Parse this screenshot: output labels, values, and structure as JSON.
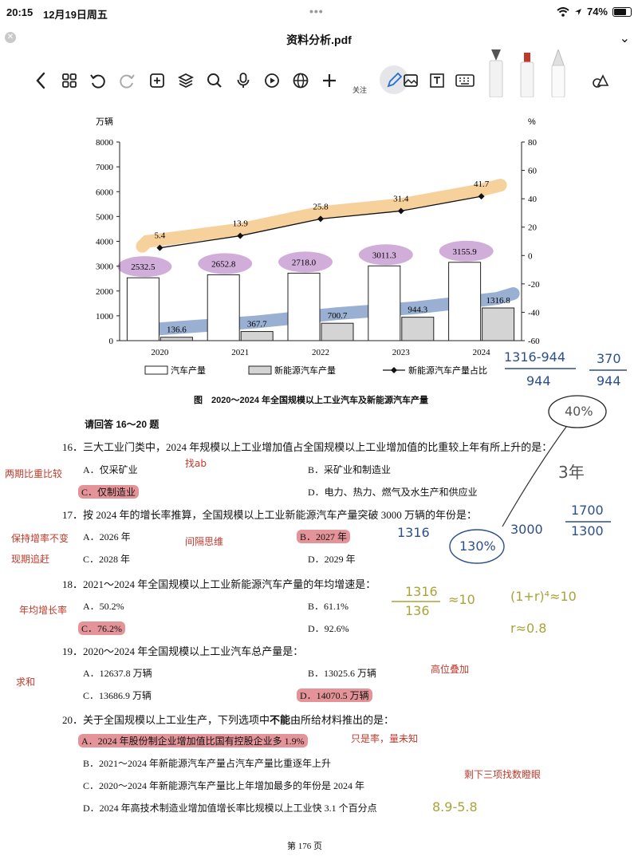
{
  "status_bar": {
    "time": "20:15",
    "date": "12月19日周五",
    "dots": "•••",
    "battery_percent": 74,
    "battery_label": "74%"
  },
  "header": {
    "close_glyph": "✕",
    "title": "资料分析.pdf",
    "expand_glyph": "⌄"
  },
  "toolbar": {
    "icons": [
      "back-icon",
      "grid-icon",
      "undo-icon",
      "redo-icon",
      "add-page-icon",
      "layers-icon",
      "search-icon",
      "microphone-icon",
      "record-icon",
      "globe-icon",
      "add-icon",
      "pen-icon",
      "image-icon",
      "text-box-icon",
      "keyboard-icon",
      "shapes-icon"
    ],
    "follow_label": "关注",
    "pen_colors": [
      "#f2f2f2",
      "#c0392b",
      "#e8e8e8"
    ],
    "accent_color": "#1e6fd9"
  },
  "chart_data": {
    "type": "bar",
    "categories": [
      "2020",
      "2021",
      "2022",
      "2023",
      "2024"
    ],
    "series": [
      {
        "name": "汽车产量",
        "kind": "bar",
        "axis": "left",
        "values": [
          2532.5,
          2652.8,
          2718.0,
          3011.3,
          3155.9
        ],
        "labels": [
          "2532.5",
          "2652.8",
          "2718.0",
          "3011.3",
          "3155.9"
        ]
      },
      {
        "name": "新能源汽车产量",
        "kind": "bar",
        "axis": "left",
        "values": [
          136.6,
          367.7,
          700.7,
          944.3,
          1316.8
        ],
        "labels": [
          "136.6",
          "367.7",
          "700.7",
          "944.3",
          "1316.8"
        ]
      },
      {
        "name": "新能源汽车产量占比",
        "kind": "line",
        "axis": "right",
        "values": [
          5.4,
          13.9,
          25.8,
          31.4,
          41.7
        ],
        "labels": [
          "5.4",
          "13.9",
          "25.8",
          "31.4",
          "41.7"
        ]
      }
    ],
    "left_axis": {
      "unit": "万辆",
      "ylim": [
        0,
        8000
      ],
      "ticks": [
        "0",
        "1000",
        "2000",
        "3000",
        "4000",
        "5000",
        "6000",
        "7000",
        "8000"
      ]
    },
    "right_axis": {
      "unit": "%",
      "ylim": [
        -60,
        80
      ],
      "ticks": [
        "-60",
        "-40",
        "-20",
        "0",
        "20",
        "40",
        "60",
        "80"
      ]
    },
    "legend_position": "bottom",
    "colors": {
      "car": "#ffffff",
      "nev": "#d4d4d4",
      "line": "#111111",
      "highlight_orange": "#f6c98a",
      "highlight_blue": "#7f9cc8",
      "highlight_purple": "#c69ad0"
    }
  },
  "figure_caption": "图　2020～2024 年全国规模以上工业汽车及新能源汽车产量",
  "section_heading": "请回答 16～20 题",
  "questions": [
    {
      "stem": "16．三大工业门类中，2024 年规模以上工业增加值占全国规模以上工业增加值的比重较上年有所上升的是：",
      "options": [
        "A．仅采矿业",
        "B．采矿业和制造业",
        "C．仅制造业",
        "D．电力、热力、燃气及水生产和供应业"
      ]
    },
    {
      "stem": "17．按 2024 年的增长率推算，全国规模以上工业新能源汽车产量突破 3000 万辆的年份是：",
      "options": [
        "A．2026 年",
        "B．2027 年",
        "C．2028 年",
        "D．2029 年"
      ]
    },
    {
      "stem": "18．2021～2024 年全国规模以上工业新能源汽车产量的年均增速是：",
      "options": [
        "A．50.2%",
        "B．61.1%",
        "C．76.2%",
        "D．92.6%"
      ]
    },
    {
      "stem": "19．2020～2024 年全国规模以上工业汽车总产量是：",
      "options": [
        "A．12637.8 万辆",
        "B．13025.6 万辆",
        "C．13686.9 万辆",
        "D．14070.5 万辆"
      ]
    },
    {
      "stem_pre": "20．关于全国规模以上工业生产，下列选项中",
      "stem_bold": "不能",
      "stem_post": "由所给材料推出的是：",
      "options": [
        "A．2024 年股份制企业增加值比国有控股企业多 1.9%",
        "B．2021～2024 年新能源汽车产量占汽车产量比重逐年上升",
        "C．2020～2024 年新能源汽车产量比上年增加最多的年份是 2024 年",
        "D．2024 年高技术制造业增加值增长率比规模以上工业快 3.1 个百分点"
      ]
    }
  ],
  "annotations": {
    "q16_left": "两期比重比较",
    "q16_mid": "找ab",
    "q17_left_1": "保持增率不变",
    "q17_left_2": "现期追赶",
    "q17_mid": "间隔思维",
    "q18_left": "年均增长率",
    "q19_left": "求和",
    "q19_right": "高位叠加",
    "q20_right": "只是率，量未知",
    "q20_remaining": "剩下三项找数瞪眼",
    "q20_d_calc": "8.9-5.8",
    "calc_frac_1_num": "1316-944",
    "calc_frac_1_den": "944",
    "calc_frac_2_num": "370",
    "calc_frac_2_den": "944",
    "calc_40": "40%",
    "calc_3y": "3年",
    "calc_1316": "1316",
    "calc_3000": "3000",
    "calc_130": "130%",
    "calc_frac_3_num": "1700",
    "calc_frac_3_den": "1300",
    "calc_q18_frac_num": "1316",
    "calc_q18_frac_den": "136",
    "calc_q18_approx": "≈10",
    "calc_q18_eq": "(1+r)⁴≈10",
    "calc_q18_r": "r≈0.8"
  },
  "page_number": "第 176 页"
}
